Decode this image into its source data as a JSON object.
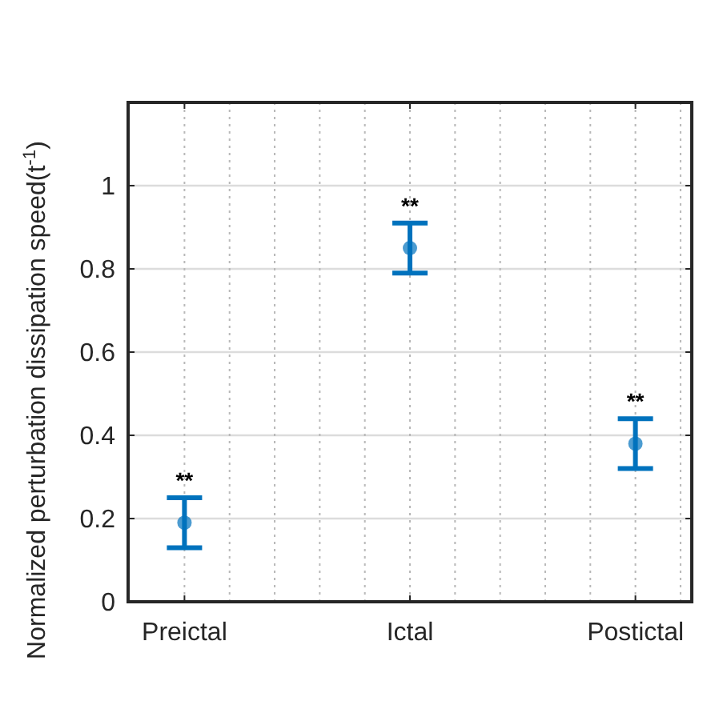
{
  "chart_data": {
    "type": "scatter",
    "ylabel": "Normalized perturbation dissipation speed(t$^{-1}$)",
    "categories": [
      "Preictal",
      "Ictal",
      "Postictal"
    ],
    "series": [
      {
        "color": "#0072bd",
        "values": [
          0.19,
          0.85,
          0.38
        ],
        "errors": [
          [
            0.13,
            0.25
          ],
          [
            0.79,
            0.91
          ],
          [
            0.32,
            0.44
          ]
        ]
      }
    ],
    "ylim": [
      0,
      1.2
    ],
    "yticks": [
      0,
      0.2,
      0.4,
      0.6,
      0.8,
      1
    ],
    "grid": true,
    "marker": "circle",
    "annotations": [
      {
        "text": "**",
        "x": "Preictal",
        "y": 0.25
      },
      {
        "text": "**",
        "x": "Ictal",
        "y": 0.91
      },
      {
        "text": "**",
        "x": "Postictal",
        "y": 0.44
      }
    ]
  }
}
